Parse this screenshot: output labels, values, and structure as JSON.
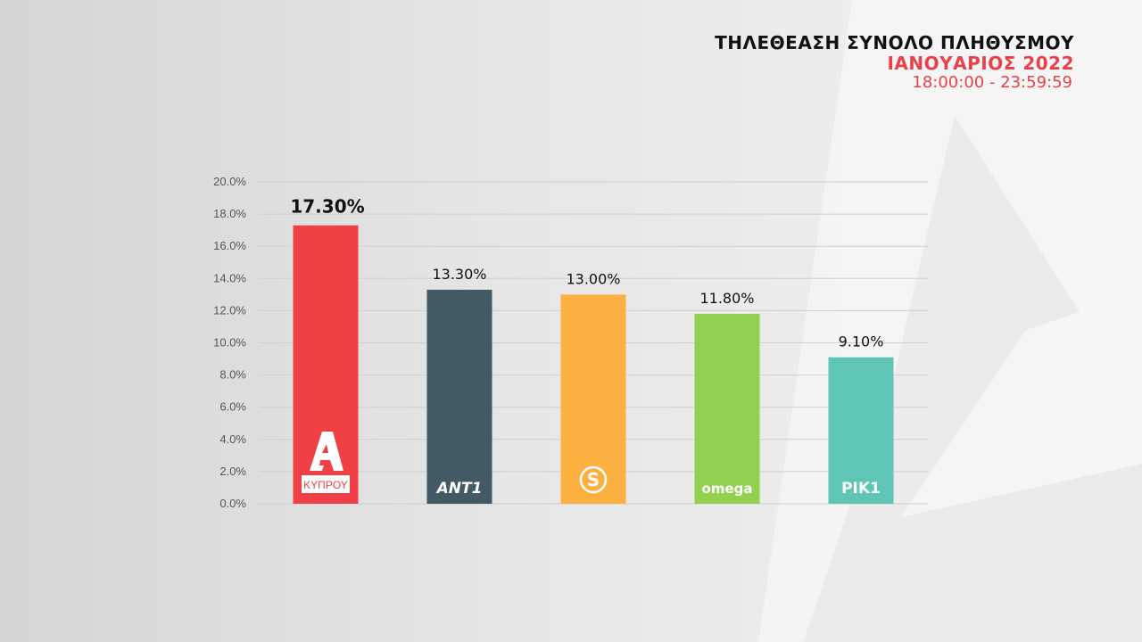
{
  "header": {
    "title": "ΤΗΛΕΘΕΑΣΗ ΣΥΝΟΛΟ ΠΛΗΘΥΣΜΟΥ",
    "subtitle": "ΙΑΝΟΥΑΡΙΟΣ 2022",
    "time_range": "18:00:00 - 23:59:59",
    "accent_color": "#e8414a"
  },
  "chart_data": {
    "type": "bar",
    "title": "ΤΗΛΕΘΕΑΣΗ ΣΥΝΟΛΟ ΠΛΗΘΥΣΜΟΥ",
    "xlabel": "",
    "ylabel": "",
    "ylim": [
      0,
      20
    ],
    "yticks": [
      "0.0%",
      "2.0%",
      "4.0%",
      "6.0%",
      "8.0%",
      "10.0%",
      "12.0%",
      "14.0%",
      "16.0%",
      "18.0%",
      "20.0%"
    ],
    "grid": true,
    "categories": [
      {
        "logo": "alpha-kyprou-logo",
        "logo_text": "ΚΥΠΡΟΥ",
        "color": "#f04046",
        "value": 17.3,
        "label": "17.30%"
      },
      {
        "logo": "ant1-logo",
        "logo_text": "ANT1",
        "color": "#435a64",
        "value": 13.3,
        "label": "13.30%"
      },
      {
        "logo": "sigma-logo",
        "logo_text": "S",
        "color": "#fbb040",
        "value": 13.0,
        "label": "13.00%"
      },
      {
        "logo": "omega-logo",
        "logo_text": "omega",
        "color": "#92d14f",
        "value": 11.8,
        "label": "11.80%"
      },
      {
        "logo": "rik1-logo",
        "logo_text": "ΡΙΚ1",
        "color": "#5fc5b5",
        "value": 9.1,
        "label": "9.10%"
      }
    ]
  }
}
